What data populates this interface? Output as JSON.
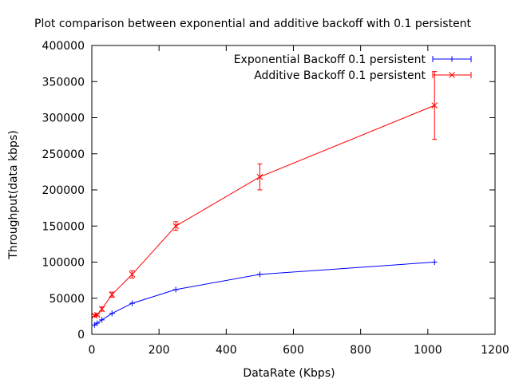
{
  "chart_data": {
    "type": "line",
    "title": "Plot comparison between exponential and additive backoff with 0.1 persistent",
    "xlabel": "DataRate (Kbps)",
    "ylabel": "Throughput(data kbps)",
    "xlim": [
      0,
      1200
    ],
    "ylim": [
      0,
      400000
    ],
    "x_ticks": [
      0,
      200,
      400,
      600,
      800,
      1000,
      1200
    ],
    "y_ticks": [
      0,
      50000,
      100000,
      150000,
      200000,
      250000,
      300000,
      350000,
      400000
    ],
    "x_tick_labels": [
      "0",
      "200",
      "400",
      "600",
      "800",
      "1000",
      "1200"
    ],
    "y_tick_labels": [
      "0",
      "50000",
      "100000",
      "150000",
      "200000",
      "250000",
      "300000",
      "350000",
      "400000"
    ],
    "grid": false,
    "legend_position": "top-right",
    "series": [
      {
        "name": "Exponential Backoff 0.1 persistent",
        "color": "#0000ff",
        "marker": "plus",
        "x": [
          8,
          16,
          30,
          60,
          120,
          250,
          500,
          1020
        ],
        "y": [
          13000,
          15500,
          20000,
          29000,
          43000,
          62000,
          83000,
          100000
        ],
        "err": [
          0,
          0,
          0,
          0,
          0,
          0,
          0,
          0
        ]
      },
      {
        "name": "Additive Backoff 0.1 persistent",
        "color": "#ff0000",
        "marker": "cross",
        "x": [
          8,
          16,
          30,
          60,
          120,
          250,
          500,
          1020
        ],
        "y": [
          26000,
          27000,
          35000,
          55000,
          83000,
          150000,
          218000,
          317000
        ],
        "err": [
          1500,
          1500,
          3000,
          3500,
          5000,
          6000,
          18000,
          47000
        ]
      }
    ]
  }
}
